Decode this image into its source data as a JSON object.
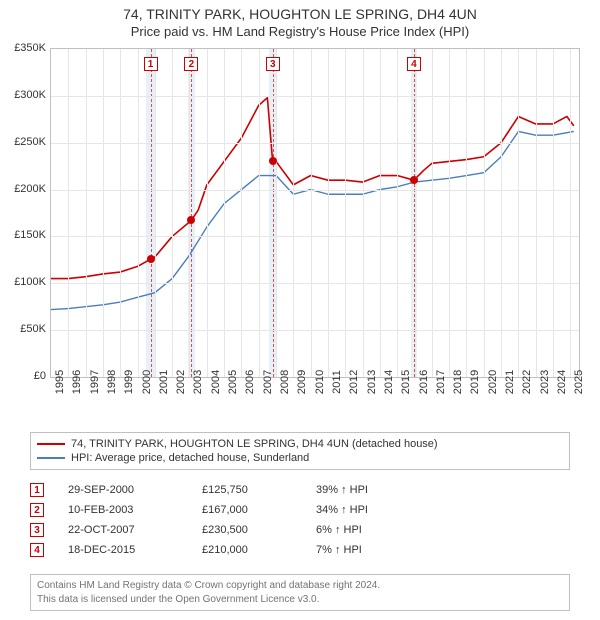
{
  "title1": "74, TRINITY PARK, HOUGHTON LE SPRING, DH4 4UN",
  "title2": "Price paid vs. HM Land Registry's House Price Index (HPI)",
  "chart": {
    "type": "line",
    "background_color": "#ffffff",
    "grid_color": "#e6e6e6",
    "border_color": "#c0c0c0",
    "x": {
      "min": 1995,
      "max": 2025.5,
      "ticks": [
        1995,
        1996,
        1997,
        1998,
        1999,
        2000,
        2001,
        2002,
        2003,
        2004,
        2005,
        2006,
        2007,
        2008,
        2009,
        2010,
        2011,
        2012,
        2013,
        2014,
        2015,
        2016,
        2017,
        2018,
        2019,
        2020,
        2021,
        2022,
        2023,
        2024,
        2025
      ]
    },
    "y": {
      "min": 0,
      "max": 350000,
      "tick_step": 50000,
      "labels": [
        "£0",
        "£50K",
        "£100K",
        "£150K",
        "£200K",
        "£250K",
        "£300K",
        "£350K"
      ]
    },
    "series": [
      {
        "name": "74, TRINITY PARK, HOUGHTON LE SPRING, DH4 4UN (detached house)",
        "color": "#cc0000",
        "line_width": 1.6,
        "points": [
          [
            1995,
            105000
          ],
          [
            1996,
            105000
          ],
          [
            1997,
            107000
          ],
          [
            1998,
            110000
          ],
          [
            1999,
            112000
          ],
          [
            2000,
            118000
          ],
          [
            2000.75,
            125750
          ],
          [
            2001,
            128000
          ],
          [
            2002,
            150000
          ],
          [
            2003.1,
            167000
          ],
          [
            2003.5,
            178000
          ],
          [
            2004,
            205000
          ],
          [
            2005,
            230000
          ],
          [
            2006,
            255000
          ],
          [
            2007,
            290000
          ],
          [
            2007.5,
            298000
          ],
          [
            2007.8,
            230500
          ],
          [
            2008,
            230000
          ],
          [
            2009,
            205000
          ],
          [
            2010,
            215000
          ],
          [
            2011,
            210000
          ],
          [
            2012,
            210000
          ],
          [
            2013,
            208000
          ],
          [
            2014,
            215000
          ],
          [
            2015,
            215000
          ],
          [
            2015.96,
            210000
          ],
          [
            2016.5,
            220000
          ],
          [
            2017,
            228000
          ],
          [
            2018,
            230000
          ],
          [
            2019,
            232000
          ],
          [
            2020,
            235000
          ],
          [
            2021,
            250000
          ],
          [
            2022,
            278000
          ],
          [
            2023,
            270000
          ],
          [
            2024,
            270000
          ],
          [
            2024.8,
            278000
          ],
          [
            2025.2,
            268000
          ]
        ]
      },
      {
        "name": "HPI: Average price, detached house, Sunderland",
        "color": "#4a7ebb",
        "line_width": 1.4,
        "points": [
          [
            1995,
            72000
          ],
          [
            1996,
            73000
          ],
          [
            1997,
            75000
          ],
          [
            1998,
            77000
          ],
          [
            1999,
            80000
          ],
          [
            2000,
            85000
          ],
          [
            2001,
            90000
          ],
          [
            2002,
            105000
          ],
          [
            2003,
            130000
          ],
          [
            2004,
            160000
          ],
          [
            2005,
            185000
          ],
          [
            2006,
            200000
          ],
          [
            2007,
            215000
          ],
          [
            2008,
            215000
          ],
          [
            2009,
            195000
          ],
          [
            2010,
            200000
          ],
          [
            2011,
            195000
          ],
          [
            2012,
            195000
          ],
          [
            2013,
            195000
          ],
          [
            2014,
            200000
          ],
          [
            2015,
            203000
          ],
          [
            2016,
            208000
          ],
          [
            2017,
            210000
          ],
          [
            2018,
            212000
          ],
          [
            2019,
            215000
          ],
          [
            2020,
            218000
          ],
          [
            2021,
            235000
          ],
          [
            2022,
            262000
          ],
          [
            2023,
            258000
          ],
          [
            2024,
            258000
          ],
          [
            2025.2,
            262000
          ]
        ]
      }
    ],
    "bands": [
      {
        "from": 2000.5,
        "to": 2001.0,
        "color": "#d6e4f0"
      },
      {
        "from": 2002.9,
        "to": 2003.3,
        "color": "#d6e4f0"
      },
      {
        "from": 2007.6,
        "to": 2008.0,
        "color": "#d6e4f0"
      },
      {
        "from": 2015.8,
        "to": 2016.15,
        "color": "#d6e4f0"
      }
    ],
    "vdash_color": "#d04040",
    "markers": [
      {
        "n": "1",
        "x": 2000.75,
        "y": 125750
      },
      {
        "n": "2",
        "x": 2003.11,
        "y": 167000
      },
      {
        "n": "3",
        "x": 2007.81,
        "y": 230500
      },
      {
        "n": "4",
        "x": 2015.96,
        "y": 210000
      }
    ],
    "marker_box_top_offset": 8
  },
  "legend": {
    "items": [
      {
        "color": "#cc0000",
        "label": "74, TRINITY PARK, HOUGHTON LE SPRING, DH4 4UN (detached house)"
      },
      {
        "color": "#4a7ebb",
        "label": "HPI: Average price, detached house, Sunderland"
      }
    ]
  },
  "events": [
    {
      "n": "1",
      "date": "29-SEP-2000",
      "price": "£125,750",
      "pct": "39% ↑ HPI"
    },
    {
      "n": "2",
      "date": "10-FEB-2003",
      "price": "£167,000",
      "pct": "34% ↑ HPI"
    },
    {
      "n": "3",
      "date": "22-OCT-2007",
      "price": "£230,500",
      "pct": "6% ↑ HPI"
    },
    {
      "n": "4",
      "date": "18-DEC-2015",
      "price": "£210,000",
      "pct": "7% ↑ HPI"
    }
  ],
  "footer": {
    "line1": "Contains HM Land Registry data © Crown copyright and database right 2024.",
    "line2": "This data is licensed under the Open Government Licence v3.0."
  }
}
